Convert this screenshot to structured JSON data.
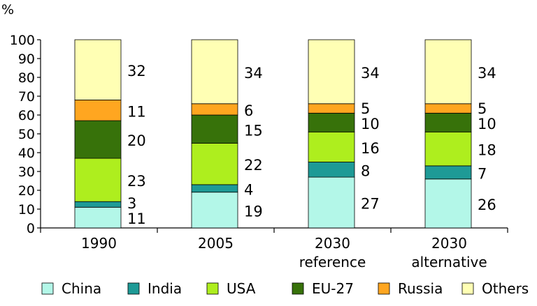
{
  "chart_data": {
    "type": "bar",
    "stacked": true,
    "unit_label": "%",
    "ylim": [
      0,
      100
    ],
    "yticks": [
      0,
      10,
      20,
      30,
      40,
      50,
      60,
      70,
      80,
      90,
      100
    ],
    "categories": [
      [
        "1990"
      ],
      [
        "2005"
      ],
      [
        "2030",
        "reference"
      ],
      [
        "2030",
        "alternative"
      ]
    ],
    "series": [
      {
        "name": "China",
        "color": "#b3f7e8",
        "values": [
          11,
          19,
          27,
          26
        ]
      },
      {
        "name": "India",
        "color": "#1e9a96",
        "values": [
          3,
          4,
          8,
          7
        ]
      },
      {
        "name": "USA",
        "color": "#aeee1e",
        "values": [
          23,
          22,
          16,
          18
        ]
      },
      {
        "name": "EU-27",
        "color": "#37720a",
        "values": [
          20,
          15,
          10,
          10
        ]
      },
      {
        "name": "Russia",
        "color": "#ffa620",
        "values": [
          11,
          6,
          5,
          5
        ]
      },
      {
        "name": "Others",
        "color": "#ffffb4",
        "values": [
          32,
          34,
          34,
          34
        ]
      }
    ],
    "legend_position": "bottom",
    "grid": false
  }
}
